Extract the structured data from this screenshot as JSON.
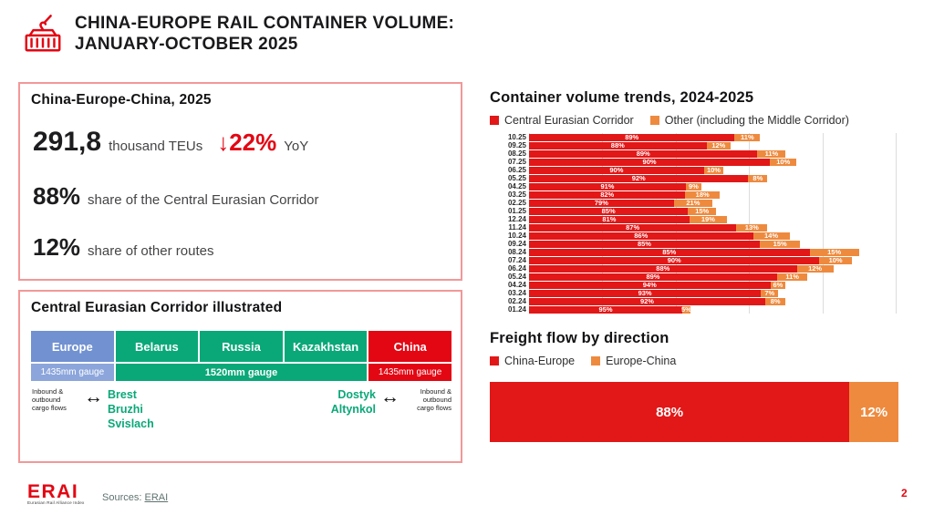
{
  "header": {
    "title_line1": "CHINA-EUROPE RAIL CONTAINER VOLUME:",
    "title_line2": "JANUARY-OCTOBER 2025"
  },
  "summary": {
    "title": "China-Europe-China,  2025",
    "volume": "291,8",
    "volume_unit": "thousand TEUs",
    "yoy_arrow": "↓",
    "yoy_change": "22%",
    "yoy_label": "YoY",
    "cec_share": "88%",
    "cec_share_label": "share of the Central Eurasian Corridor",
    "other_share": "12%",
    "other_share_label": "share of other routes"
  },
  "corridor": {
    "title": "Central Eurasian Corridor illustrated",
    "countries": [
      {
        "name": "Europe",
        "color": "#7191d1"
      },
      {
        "name": "Belarus",
        "color": "#0aa878"
      },
      {
        "name": "Russia",
        "color": "#0aa878"
      },
      {
        "name": "Kazakhstan",
        "color": "#0aa878"
      },
      {
        "name": "China",
        "color": "#e30613"
      }
    ],
    "gauge_row": [
      {
        "label": "1435mm gauge",
        "color": "#8ca6db"
      },
      {
        "label": "1520mm gauge",
        "color": "#0aa878"
      },
      {
        "label": "1435mm gauge",
        "color": "#e30613"
      }
    ],
    "flow_left": "Inbound & outbound cargo flows",
    "flow_right": "Inbound & outbound cargo flows",
    "arrow": "↔",
    "left_towns": [
      "Brest",
      "Bruzhi",
      "Svislach"
    ],
    "right_towns": [
      "Dostyk",
      "Altynkol"
    ]
  },
  "trends": {
    "title": "Container volume trends, 2024-2025",
    "legend": [
      {
        "label": "Central Eurasian Corridor",
        "color": "#e21717"
      },
      {
        "label": "Other (including the Middle Corridor)",
        "color": "#ee8a3e"
      }
    ]
  },
  "direction": {
    "title": "Freight flow by direction",
    "legend": [
      {
        "label": "China-Europe",
        "color": "#e21717"
      },
      {
        "label": "Europe-China",
        "color": "#ee8a3e"
      }
    ]
  },
  "chart_data": [
    {
      "type": "bar",
      "orientation": "horizontal",
      "stacked": true,
      "title": "Container volume trends, 2024-2025",
      "legend_position": "top",
      "grid": "vertical",
      "note": "bar length is proportional to monthly volume; segment labels are percent shares",
      "categories": [
        "10.25",
        "09.25",
        "08.25",
        "07.25",
        "06.25",
        "05.25",
        "04.25",
        "03.25",
        "02.25",
        "01.25",
        "12.24",
        "11.24",
        "10.24",
        "09.24",
        "08.24",
        "07.24",
        "06.24",
        "05.24",
        "04.24",
        "03.24",
        "02.24",
        "01.24"
      ],
      "series": [
        {
          "name": "Central Eurasian Corridor",
          "color": "#e21717",
          "pct": [
            89,
            88,
            89,
            90,
            90,
            92,
            91,
            82,
            79,
            85,
            81,
            87,
            86,
            85,
            85,
            90,
            88,
            89,
            94,
            93,
            92,
            95
          ]
        },
        {
          "name": "Other (including the Middle Corridor)",
          "color": "#ee8a3e",
          "pct": [
            11,
            12,
            11,
            10,
            10,
            8,
            9,
            18,
            21,
            15,
            19,
            13,
            14,
            15,
            15,
            10,
            12,
            11,
            6,
            7,
            8,
            5
          ]
        }
      ],
      "total_width_pct_of_plot": [
        63,
        55,
        70,
        73,
        53,
        65,
        47,
        52,
        50,
        51,
        54,
        65,
        71,
        74,
        90,
        88,
        83,
        76,
        70,
        68,
        70,
        44
      ]
    },
    {
      "type": "bar",
      "orientation": "horizontal",
      "stacked": true,
      "title": "Freight flow by direction",
      "categories": [
        "Jan-Oct 2025"
      ],
      "series": [
        {
          "name": "China-Europe",
          "color": "#e21717",
          "values": [
            88
          ],
          "label": "88%"
        },
        {
          "name": "Europe-China",
          "color": "#ee8a3e",
          "values": [
            12
          ],
          "label": "12%"
        }
      ]
    }
  ],
  "footer": {
    "logo": "ERAI",
    "logo_tagline": "Eurasian Rail Alliance Index",
    "sources_label": "Sources:",
    "sources_link": "ERAI",
    "page_number": "2"
  },
  "colors": {
    "red": "#e21717",
    "china_red": "#e30613",
    "orange": "#ee8a3e",
    "green": "#0aa878",
    "blue": "#7191d1",
    "blue_light": "#8ca6db",
    "pink_border": "#f29898",
    "gridline": "#dcdcdc"
  }
}
